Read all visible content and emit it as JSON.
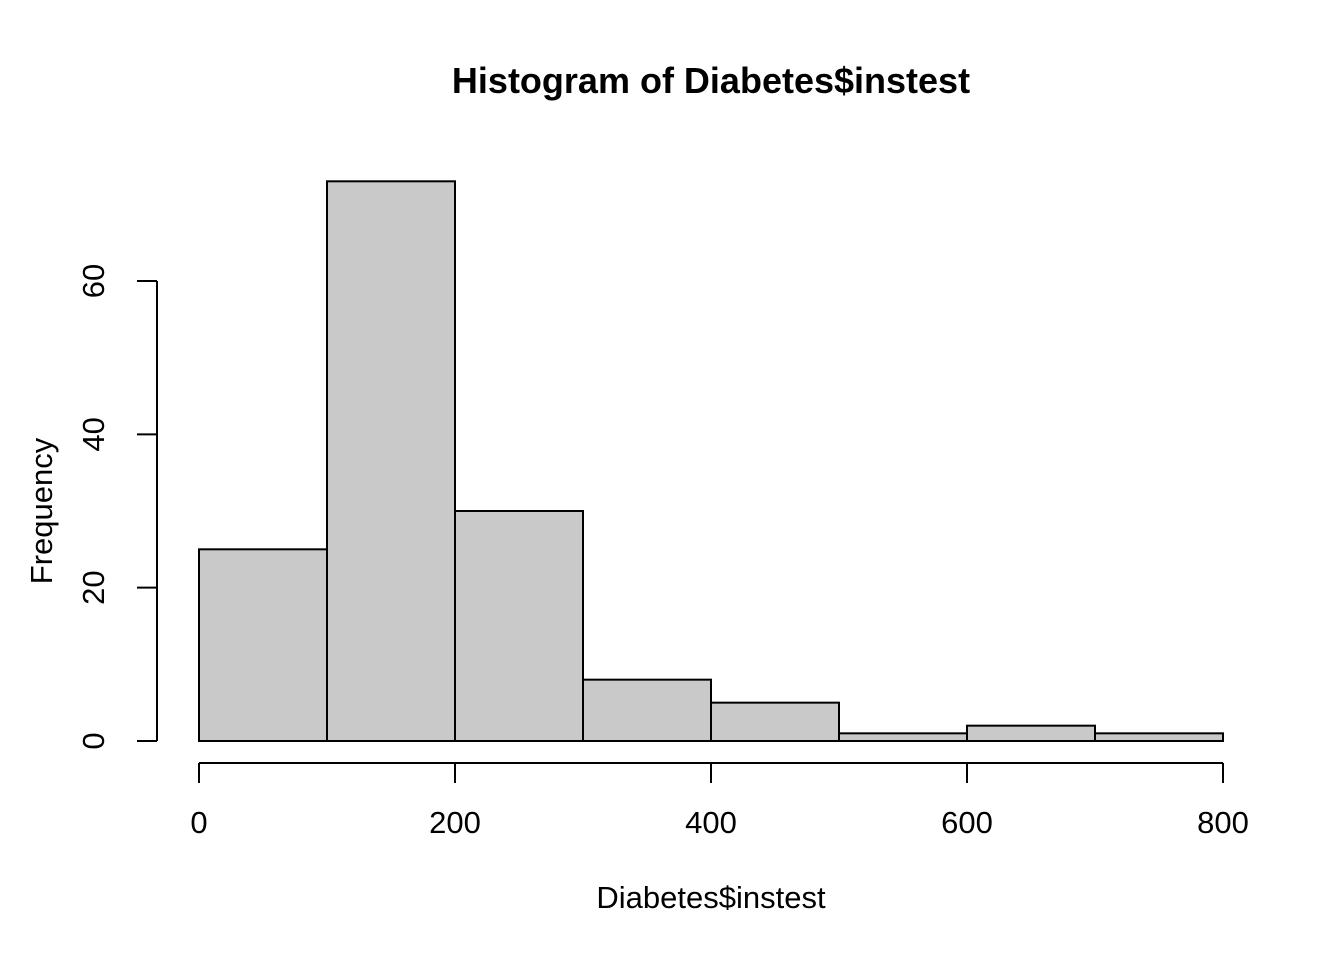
{
  "chart_data": {
    "type": "bar",
    "subtype": "histogram",
    "title": "Histogram of Diabetes$instest",
    "xlabel": "Diabetes$instest",
    "ylabel": "Frequency",
    "bins": [
      {
        "start": 0,
        "end": 100,
        "count": 25
      },
      {
        "start": 100,
        "end": 200,
        "count": 73
      },
      {
        "start": 200,
        "end": 300,
        "count": 30
      },
      {
        "start": 300,
        "end": 400,
        "count": 8
      },
      {
        "start": 400,
        "end": 500,
        "count": 5
      },
      {
        "start": 500,
        "end": 600,
        "count": 1
      },
      {
        "start": 600,
        "end": 700,
        "count": 2
      },
      {
        "start": 700,
        "end": 800,
        "count": 1
      }
    ],
    "x_ticks": [
      0,
      200,
      400,
      600,
      800
    ],
    "y_ticks": [
      0,
      20,
      40,
      60
    ],
    "xlim": [
      0,
      800
    ],
    "ylim": [
      0,
      73
    ],
    "grid": "off",
    "legend": "none",
    "colors": {
      "bar_fill": "#c9c9c9",
      "bar_stroke": "#000000",
      "axis": "#000000",
      "background": "#ffffff"
    }
  }
}
